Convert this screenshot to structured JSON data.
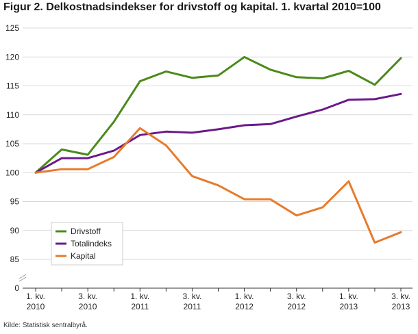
{
  "title": "Figur 2. Delkostnadsindekser for drivstoff og kapital. 1. kvartal 2010=100",
  "source": "Kilde: Statistisk sentralbyrå.",
  "chart_data": {
    "type": "line",
    "title": "Figur 2. Delkostnadsindekser for drivstoff og kapital. 1. kvartal 2010=100",
    "xlabel": "",
    "ylabel": "",
    "ylim": [
      0,
      125
    ],
    "axis_break": [
      0,
      85
    ],
    "yticks": [
      0,
      85,
      90,
      95,
      100,
      105,
      110,
      115,
      120,
      125
    ],
    "grid": true,
    "legend_position": "bottom-left",
    "x_tick_labels": [
      {
        "index": 0,
        "line1": "1. kv.",
        "line2": "2010"
      },
      {
        "index": 2,
        "line1": "3. kv.",
        "line2": "2010"
      },
      {
        "index": 4,
        "line1": "1. kv.",
        "line2": "2011"
      },
      {
        "index": 6,
        "line1": "3. kv.",
        "line2": "2011"
      },
      {
        "index": 8,
        "line1": "1. kv.",
        "line2": "2012"
      },
      {
        "index": 10,
        "line1": "3. kv.",
        "line2": "2012"
      },
      {
        "index": 12,
        "line1": "1. kv.",
        "line2": "2013"
      },
      {
        "index": 14,
        "line1": "3. kv.",
        "line2": "2013"
      }
    ],
    "categories": [
      "1. kv. 2010",
      "2. kv. 2010",
      "3. kv. 2010",
      "4. kv. 2010",
      "1. kv. 2011",
      "2. kv. 2011",
      "3. kv. 2011",
      "4. kv. 2011",
      "1. kv. 2012",
      "2. kv. 2012",
      "3. kv. 2012",
      "4. kv. 2012",
      "1. kv. 2013",
      "2. kv. 2013",
      "3. kv. 2013"
    ],
    "series": [
      {
        "name": "Drivstoff",
        "color": "#4a8a1a",
        "values": [
          100,
          104,
          103.1,
          108.8,
          115.8,
          117.5,
          116.4,
          116.8,
          120.0,
          117.8,
          116.5,
          116.3,
          117.6,
          115.2,
          119.8
        ]
      },
      {
        "name": "Totalindeks",
        "color": "#6a1a8a",
        "values": [
          100,
          102.5,
          102.5,
          103.8,
          106.5,
          107.1,
          106.9,
          107.5,
          108.2,
          108.4,
          109.7,
          110.9,
          112.6,
          112.7,
          113.6
        ]
      },
      {
        "name": "Kapital",
        "color": "#e87a2a",
        "values": [
          100,
          100.6,
          100.6,
          102.7,
          107.7,
          104.7,
          99.4,
          97.8,
          95.4,
          95.4,
          92.6,
          94.0,
          98.5,
          87.9,
          89.7
        ]
      }
    ]
  }
}
